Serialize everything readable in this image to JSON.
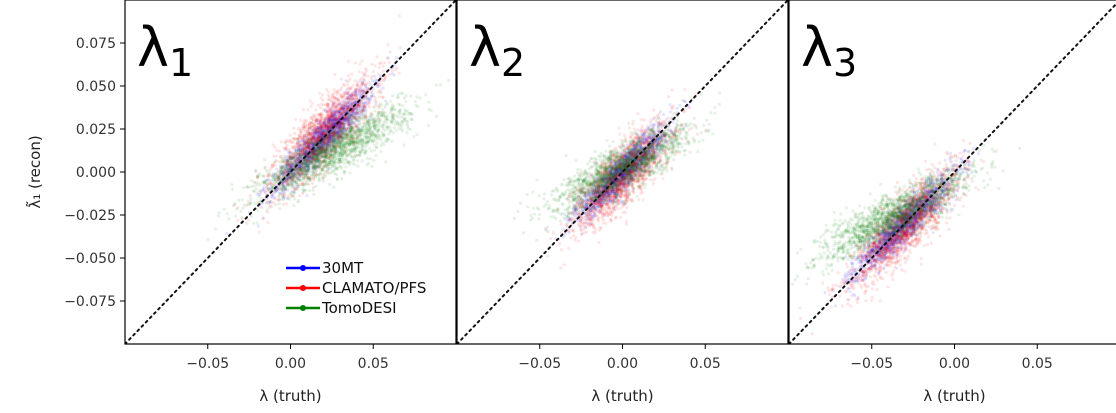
{
  "chart_data": [
    {
      "type": "scatter",
      "title": "λ",
      "title_sub": "1",
      "xlabel": "λ (truth)",
      "ylabel": "λ̃₁ (recon)",
      "xlim": [
        -0.1,
        0.1
      ],
      "ylim": [
        -0.1,
        0.1
      ],
      "xticks": [
        -0.05,
        0.0,
        0.05
      ],
      "xtick_labels": [
        "−0.05",
        "0.00",
        "0.05"
      ],
      "yticks": [
        0.075,
        0.05,
        0.025,
        0.0,
        -0.025,
        -0.05,
        -0.075
      ],
      "ytick_labels": [
        "0.075",
        "0.050",
        "0.025",
        "0.000",
        "−0.025",
        "−0.050",
        "−0.075"
      ],
      "reference_line": "y = x",
      "legend": "lower-right",
      "grid": false,
      "series": [
        {
          "name": "30MT",
          "color": "#0000ff",
          "center": [
            0.02,
            0.02
          ],
          "slope": 1.0,
          "spread_major": 0.04,
          "spread_minor": 0.008
        },
        {
          "name": "CLAMATO/PFS",
          "color": "#ff0000",
          "center": [
            0.02,
            0.022
          ],
          "slope": 1.05,
          "spread_major": 0.045,
          "spread_minor": 0.013
        },
        {
          "name": "TomoDESI",
          "color": "#008000",
          "center": [
            0.025,
            0.012
          ],
          "slope": 0.55,
          "spread_major": 0.05,
          "spread_minor": 0.012
        }
      ]
    },
    {
      "type": "scatter",
      "title": "λ",
      "title_sub": "2",
      "xlabel": "λ (truth)",
      "xlim": [
        -0.1,
        0.1
      ],
      "ylim": [
        -0.1,
        0.1
      ],
      "xticks": [
        -0.05,
        0.0,
        0.05
      ],
      "xtick_labels": [
        "−0.05",
        "0.00",
        "0.05"
      ],
      "reference_line": "y = x",
      "series": [
        {
          "name": "30MT",
          "color": "#0000ff",
          "center": [
            0.0,
            0.0
          ],
          "slope": 1.0,
          "spread_major": 0.035,
          "spread_minor": 0.008
        },
        {
          "name": "CLAMATO/PFS",
          "color": "#ff0000",
          "center": [
            0.0,
            -0.002
          ],
          "slope": 1.05,
          "spread_major": 0.04,
          "spread_minor": 0.013
        },
        {
          "name": "TomoDESI",
          "color": "#008000",
          "center": [
            0.0,
            0.002
          ],
          "slope": 0.55,
          "spread_major": 0.045,
          "spread_minor": 0.012
        }
      ]
    },
    {
      "type": "scatter",
      "title": "λ",
      "title_sub": "3",
      "xlabel": "λ (truth)",
      "xlim": [
        -0.1,
        0.1
      ],
      "ylim": [
        -0.1,
        0.1
      ],
      "xticks": [
        -0.05,
        0.0,
        0.05
      ],
      "xtick_labels": [
        "−0.05",
        "0.00",
        "0.05"
      ],
      "reference_line": "y = x",
      "series": [
        {
          "name": "30MT",
          "color": "#0000ff",
          "center": [
            -0.03,
            -0.03
          ],
          "slope": 1.0,
          "spread_major": 0.04,
          "spread_minor": 0.008
        },
        {
          "name": "CLAMATO/PFS",
          "color": "#ff0000",
          "center": [
            -0.03,
            -0.032
          ],
          "slope": 1.05,
          "spread_major": 0.045,
          "spread_minor": 0.013
        },
        {
          "name": "TomoDESI",
          "color": "#008000",
          "center": [
            -0.035,
            -0.025
          ],
          "slope": 0.55,
          "spread_major": 0.05,
          "spread_minor": 0.012
        }
      ]
    }
  ]
}
